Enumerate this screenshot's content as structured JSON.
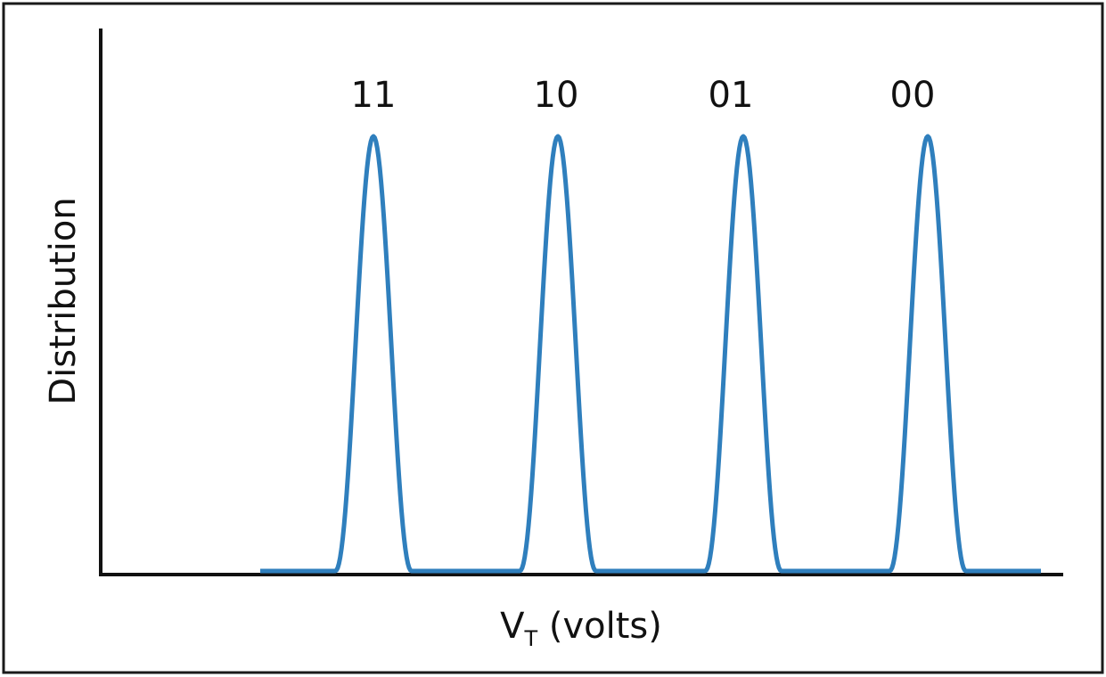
{
  "diagram": {
    "y_axis_label": "Distribution",
    "x_axis_label": {
      "main": "V",
      "subscript": "T",
      "rest": " (volts)"
    },
    "peaks": [
      {
        "label": "11"
      },
      {
        "label": "10"
      },
      {
        "label": "01"
      },
      {
        "label": "00"
      }
    ],
    "colors": {
      "curve": "#2f7fbd",
      "axes": "#111111",
      "frame": "#1a1a1a"
    }
  }
}
